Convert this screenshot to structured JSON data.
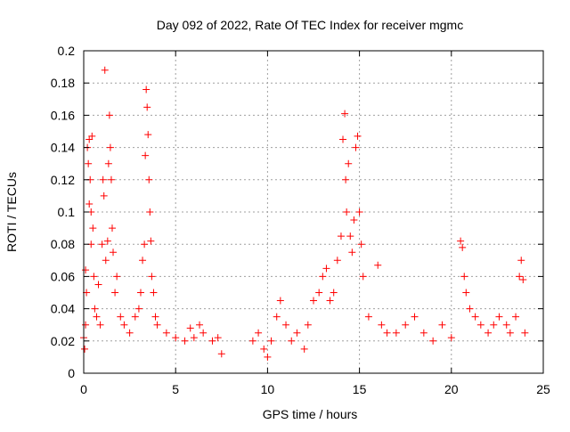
{
  "chart_data": {
    "type": "scatter",
    "title": "Day 092 of 2022, Rate Of TEC Index for receiver mgmc",
    "xlabel": "GPS time / hours",
    "ylabel": "ROTI / TECUs",
    "xlim": [
      0,
      25
    ],
    "ylim": [
      0,
      0.2
    ],
    "x_ticks": [
      0,
      5,
      10,
      15,
      20,
      25
    ],
    "x_tick_labels": [
      "0",
      "5",
      "10",
      "15",
      "20",
      "25"
    ],
    "y_ticks": [
      0,
      0.02,
      0.04,
      0.06,
      0.08,
      0.1,
      0.12,
      0.14,
      0.16,
      0.18,
      0.2
    ],
    "y_tick_labels": [
      "0",
      "0.02",
      "0.04",
      "0.06",
      "0.08",
      "0.1",
      "0.12",
      "0.14",
      "0.16",
      "0.18",
      "0.2"
    ],
    "grid": true,
    "marker": "+",
    "marker_color": "#ff0000",
    "series": [
      {
        "name": "ROTI",
        "points": [
          [
            0.0,
            0.022
          ],
          [
            0.05,
            0.015
          ],
          [
            0.1,
            0.03
          ],
          [
            0.1,
            0.064
          ],
          [
            0.15,
            0.05
          ],
          [
            0.2,
            0.14
          ],
          [
            0.25,
            0.13
          ],
          [
            0.3,
            0.145
          ],
          [
            0.3,
            0.105
          ],
          [
            0.35,
            0.12
          ],
          [
            0.4,
            0.08
          ],
          [
            0.4,
            0.1
          ],
          [
            0.45,
            0.147
          ],
          [
            0.5,
            0.09
          ],
          [
            0.55,
            0.06
          ],
          [
            0.6,
            0.04
          ],
          [
            0.7,
            0.035
          ],
          [
            0.8,
            0.055
          ],
          [
            0.9,
            0.03
          ],
          [
            1.0,
            0.08
          ],
          [
            1.05,
            0.12
          ],
          [
            1.1,
            0.11
          ],
          [
            1.15,
            0.188
          ],
          [
            1.2,
            0.07
          ],
          [
            1.3,
            0.082
          ],
          [
            1.35,
            0.13
          ],
          [
            1.4,
            0.16
          ],
          [
            1.45,
            0.14
          ],
          [
            1.5,
            0.12
          ],
          [
            1.55,
            0.09
          ],
          [
            1.6,
            0.075
          ],
          [
            1.7,
            0.05
          ],
          [
            1.8,
            0.06
          ],
          [
            2.0,
            0.035
          ],
          [
            2.2,
            0.03
          ],
          [
            2.5,
            0.025
          ],
          [
            2.8,
            0.035
          ],
          [
            3.0,
            0.04
          ],
          [
            3.1,
            0.05
          ],
          [
            3.2,
            0.07
          ],
          [
            3.3,
            0.08
          ],
          [
            3.35,
            0.135
          ],
          [
            3.4,
            0.176
          ],
          [
            3.45,
            0.165
          ],
          [
            3.5,
            0.148
          ],
          [
            3.55,
            0.12
          ],
          [
            3.6,
            0.1
          ],
          [
            3.65,
            0.082
          ],
          [
            3.7,
            0.06
          ],
          [
            3.8,
            0.05
          ],
          [
            3.9,
            0.035
          ],
          [
            4.0,
            0.03
          ],
          [
            4.5,
            0.025
          ],
          [
            5.0,
            0.022
          ],
          [
            5.5,
            0.02
          ],
          [
            5.8,
            0.028
          ],
          [
            6.0,
            0.022
          ],
          [
            6.3,
            0.03
          ],
          [
            6.5,
            0.025
          ],
          [
            7.0,
            0.02
          ],
          [
            7.3,
            0.022
          ],
          [
            7.5,
            0.012
          ],
          [
            9.2,
            0.02
          ],
          [
            9.5,
            0.025
          ],
          [
            9.8,
            0.015
          ],
          [
            10.0,
            0.01
          ],
          [
            10.2,
            0.02
          ],
          [
            10.5,
            0.035
          ],
          [
            10.7,
            0.045
          ],
          [
            11.0,
            0.03
          ],
          [
            11.3,
            0.02
          ],
          [
            11.6,
            0.025
          ],
          [
            12.0,
            0.015
          ],
          [
            12.2,
            0.03
          ],
          [
            12.5,
            0.045
          ],
          [
            12.8,
            0.05
          ],
          [
            13.0,
            0.06
          ],
          [
            13.2,
            0.065
          ],
          [
            13.4,
            0.045
          ],
          [
            13.6,
            0.05
          ],
          [
            13.8,
            0.07
          ],
          [
            14.0,
            0.085
          ],
          [
            14.1,
            0.145
          ],
          [
            14.2,
            0.161
          ],
          [
            14.25,
            0.12
          ],
          [
            14.3,
            0.1
          ],
          [
            14.4,
            0.13
          ],
          [
            14.5,
            0.085
          ],
          [
            14.6,
            0.075
          ],
          [
            14.7,
            0.095
          ],
          [
            14.8,
            0.14
          ],
          [
            14.9,
            0.147
          ],
          [
            15.0,
            0.1
          ],
          [
            15.1,
            0.08
          ],
          [
            15.2,
            0.06
          ],
          [
            15.5,
            0.035
          ],
          [
            16.0,
            0.067
          ],
          [
            16.2,
            0.03
          ],
          [
            16.5,
            0.025
          ],
          [
            17.0,
            0.025
          ],
          [
            17.5,
            0.03
          ],
          [
            18.0,
            0.035
          ],
          [
            18.5,
            0.025
          ],
          [
            19.0,
            0.02
          ],
          [
            19.5,
            0.03
          ],
          [
            20.0,
            0.022
          ],
          [
            20.5,
            0.082
          ],
          [
            20.6,
            0.078
          ],
          [
            20.7,
            0.06
          ],
          [
            20.8,
            0.05
          ],
          [
            21.0,
            0.04
          ],
          [
            21.3,
            0.035
          ],
          [
            21.6,
            0.03
          ],
          [
            22.0,
            0.025
          ],
          [
            22.3,
            0.03
          ],
          [
            22.6,
            0.035
          ],
          [
            23.0,
            0.03
          ],
          [
            23.2,
            0.025
          ],
          [
            23.5,
            0.035
          ],
          [
            23.7,
            0.06
          ],
          [
            23.8,
            0.07
          ],
          [
            23.9,
            0.058
          ],
          [
            24.0,
            0.025
          ]
        ]
      }
    ]
  }
}
